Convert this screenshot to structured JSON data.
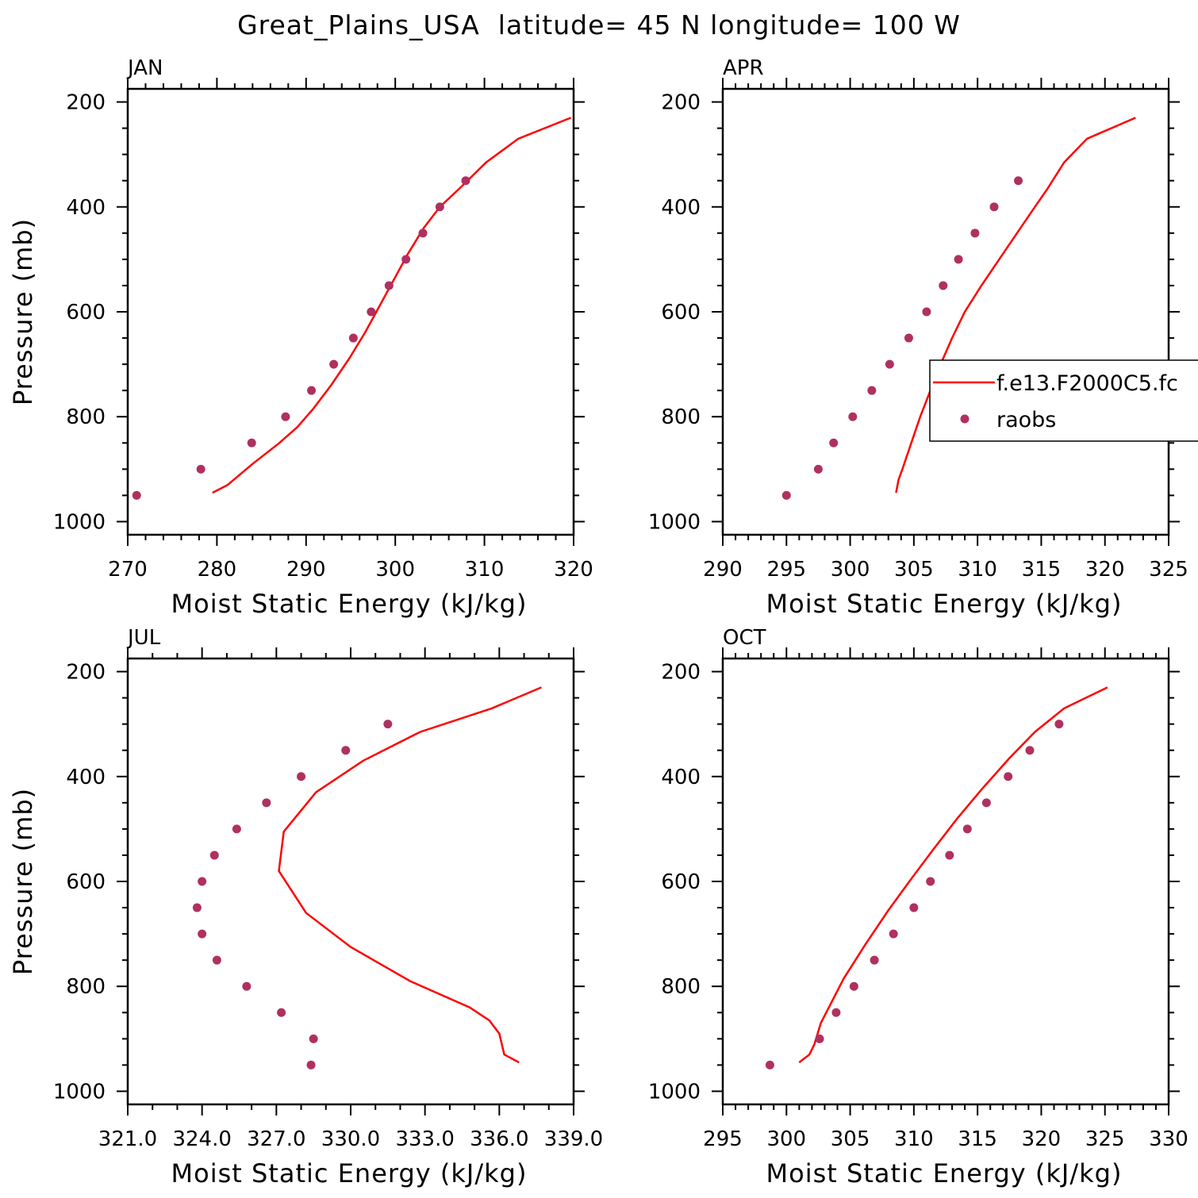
{
  "title": "Great_Plains_USA  latitude= 45 N longitude= 100 W",
  "legend": {
    "model_label": "f.e13.F2000C5.fc",
    "obs_label": "raobs",
    "model_color": "#ff0000",
    "obs_color": "#b03060"
  },
  "chart_data": [
    {
      "type": "line",
      "panel": "JAN",
      "xlabel": "Moist Static Energy (kJ/kg)",
      "ylabel": "Pressure (mb)",
      "xlim": [
        270,
        320
      ],
      "ylim": [
        1000,
        200
      ],
      "xticks": [
        "270",
        "280",
        "290",
        "300",
        "310",
        "320"
      ],
      "yticks": [
        "200",
        "400",
        "600",
        "800",
        "1000"
      ],
      "series": [
        {
          "kind": "line",
          "p": [
            945,
            930,
            890,
            850,
            820,
            785,
            740,
            690,
            640,
            590,
            540,
            490,
            440,
            400,
            365,
            315,
            270,
            230
          ],
          "x": [
            279.5,
            281.2,
            284.0,
            287.0,
            289.0,
            290.8,
            292.8,
            294.8,
            296.6,
            298.2,
            299.8,
            301.4,
            303.2,
            305.0,
            307.2,
            310.2,
            313.8,
            319.7
          ]
        },
        {
          "kind": "scatter",
          "p": [
            950,
            900,
            850,
            800,
            750,
            700,
            650,
            600,
            550,
            500,
            450,
            400,
            350
          ],
          "x": [
            271.0,
            278.2,
            283.9,
            287.7,
            290.6,
            293.1,
            295.3,
            297.3,
            299.3,
            301.2,
            303.1,
            305.0,
            307.9
          ]
        }
      ]
    },
    {
      "type": "line",
      "panel": "APR",
      "xlabel": "Moist Static Energy (kJ/kg)",
      "ylabel": "",
      "xlim": [
        290,
        325
      ],
      "ylim": [
        1000,
        200
      ],
      "xticks": [
        "290",
        "295",
        "300",
        "305",
        "310",
        "315",
        "320",
        "325"
      ],
      "yticks": [
        "200",
        "400",
        "600",
        "800",
        "1000"
      ],
      "series": [
        {
          "kind": "line",
          "p": [
            945,
            920,
            900,
            850,
            800,
            750,
            700,
            650,
            600,
            550,
            500,
            450,
            400,
            365,
            315,
            270,
            230
          ],
          "x": [
            303.6,
            303.8,
            304.1,
            304.8,
            305.5,
            306.3,
            307.1,
            308.0,
            309.0,
            310.3,
            311.7,
            313.1,
            314.5,
            315.5,
            316.8,
            318.6,
            322.4
          ]
        },
        {
          "kind": "scatter",
          "p": [
            950,
            900,
            850,
            800,
            750,
            700,
            650,
            600,
            550,
            500,
            450,
            400,
            350
          ],
          "x": [
            295.0,
            297.5,
            298.7,
            300.2,
            301.7,
            303.1,
            304.6,
            306.0,
            307.3,
            308.5,
            309.8,
            311.3,
            313.2
          ]
        }
      ]
    },
    {
      "type": "line",
      "panel": "JUL",
      "xlabel": "Moist Static Energy (kJ/kg)",
      "ylabel": "Pressure (mb)",
      "xlim": [
        321,
        339
      ],
      "ylim": [
        1000,
        200
      ],
      "xticks": [
        "321.0",
        "324.0",
        "327.0",
        "330.0",
        "333.0",
        "336.0",
        "339.0"
      ],
      "yticks": [
        "200",
        "400",
        "600",
        "800",
        "1000"
      ],
      "series": [
        {
          "kind": "line",
          "p": [
            945,
            930,
            890,
            865,
            840,
            790,
            725,
            660,
            580,
            505,
            430,
            370,
            315,
            270,
            230
          ],
          "x": [
            336.8,
            336.2,
            336.0,
            335.6,
            334.8,
            332.4,
            330.0,
            328.2,
            327.1,
            327.3,
            328.6,
            330.5,
            332.8,
            335.7,
            337.7
          ]
        },
        {
          "kind": "scatter",
          "p": [
            950,
            900,
            850,
            800,
            750,
            700,
            650,
            600,
            550,
            500,
            450,
            400,
            350,
            300
          ],
          "x": [
            328.4,
            328.5,
            327.2,
            325.8,
            324.6,
            324.0,
            323.8,
            324.0,
            324.5,
            325.4,
            326.6,
            328.0,
            329.8,
            331.5
          ]
        }
      ]
    },
    {
      "type": "line",
      "panel": "OCT",
      "xlabel": "Moist Static Energy (kJ/kg)",
      "ylabel": "",
      "xlim": [
        295,
        330
      ],
      "ylim": [
        1000,
        200
      ],
      "xticks": [
        "295",
        "300",
        "305",
        "310",
        "315",
        "320",
        "325",
        "330"
      ],
      "yticks": [
        "200",
        "400",
        "600",
        "800",
        "1000"
      ],
      "series": [
        {
          "kind": "line",
          "p": [
            945,
            930,
            910,
            870,
            785,
            720,
            655,
            595,
            540,
            480,
            425,
            365,
            315,
            270,
            230
          ],
          "x": [
            301.0,
            301.8,
            302.2,
            302.7,
            304.5,
            306.2,
            308.0,
            309.8,
            311.5,
            313.4,
            315.3,
            317.5,
            319.5,
            321.8,
            325.2
          ]
        },
        {
          "kind": "scatter",
          "p": [
            950,
            900,
            850,
            800,
            750,
            700,
            650,
            600,
            550,
            500,
            450,
            400,
            350,
            300
          ],
          "x": [
            298.7,
            302.6,
            303.9,
            305.3,
            306.9,
            308.4,
            310.0,
            311.3,
            312.8,
            314.2,
            315.7,
            317.4,
            319.1,
            321.4
          ]
        }
      ]
    }
  ]
}
